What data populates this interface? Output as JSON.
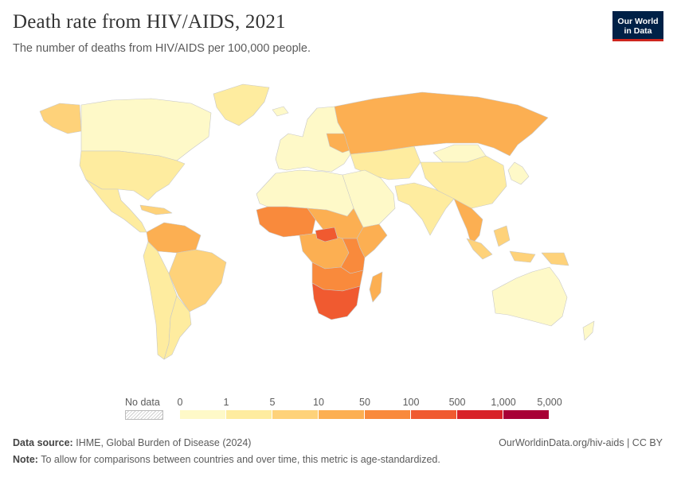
{
  "title": "Death rate from HIV/AIDS, 2021",
  "subtitle": "The number of deaths from HIV/AIDS per 100,000 people.",
  "logo": {
    "line1": "Our World",
    "line2": "in Data",
    "background": "#002147",
    "accent": "#ce261e"
  },
  "legend": {
    "no_data_label": "No data",
    "ticks": [
      "0",
      "1",
      "5",
      "10",
      "50",
      "100",
      "500",
      "1,000",
      "5,000"
    ],
    "colors": [
      "#fef9c8",
      "#feec9f",
      "#fed27a",
      "#fcaf52",
      "#f98a3c",
      "#f05a30",
      "#d82228",
      "#a80036"
    ]
  },
  "footer": {
    "source_label": "Data source:",
    "source_text": "IHME, Global Burden of Disease (2024)",
    "note_label": "Note:",
    "note_text": "To allow for comparisons between countries and over time, this metric is age-standardized.",
    "url": "OurWorldinData.org/hiv-aids | CC BY"
  }
}
